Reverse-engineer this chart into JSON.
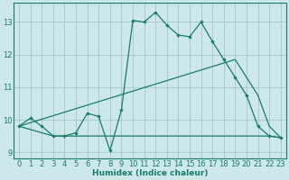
{
  "xlabel": "Humidex (Indice chaleur)",
  "bg_color": "#cce8e8",
  "line_color": "#1a7a6e",
  "grid_color": "#aacccc",
  "xlim": [
    -0.5,
    23.5
  ],
  "ylim": [
    8.8,
    13.6
  ],
  "xticks": [
    0,
    1,
    2,
    3,
    4,
    5,
    6,
    7,
    8,
    9,
    10,
    11,
    12,
    13,
    14,
    15,
    16,
    17,
    18,
    19,
    20,
    21,
    22,
    23
  ],
  "yticks": [
    9,
    10,
    11,
    12,
    13
  ],
  "line1_x": [
    0,
    1,
    2,
    3,
    4,
    5,
    6,
    7,
    8,
    9,
    10,
    11,
    12,
    13,
    14,
    15,
    16,
    17,
    18,
    19,
    20,
    21,
    22,
    23
  ],
  "line1_y": [
    9.8,
    10.05,
    9.8,
    9.5,
    9.5,
    9.6,
    10.2,
    10.1,
    9.05,
    10.3,
    13.05,
    13.0,
    13.3,
    12.9,
    12.6,
    12.55,
    13.0,
    12.4,
    11.85,
    11.3,
    10.75,
    9.8,
    9.5,
    9.45
  ],
  "line2_x": [
    0,
    19,
    20,
    21,
    22,
    23
  ],
  "line2_y": [
    9.8,
    11.85,
    11.3,
    10.75,
    9.8,
    9.45
  ],
  "line3_x": [
    0,
    3,
    4,
    5,
    6,
    7,
    8,
    9,
    10,
    11,
    12,
    13,
    14,
    15,
    16,
    17,
    18,
    19,
    20,
    21,
    22,
    23
  ],
  "line3_y": [
    9.8,
    9.5,
    9.5,
    9.5,
    9.5,
    9.5,
    9.5,
    9.5,
    9.5,
    9.5,
    9.5,
    9.5,
    9.5,
    9.5,
    9.5,
    9.5,
    9.5,
    9.5,
    9.5,
    9.5,
    9.5,
    9.45
  ]
}
